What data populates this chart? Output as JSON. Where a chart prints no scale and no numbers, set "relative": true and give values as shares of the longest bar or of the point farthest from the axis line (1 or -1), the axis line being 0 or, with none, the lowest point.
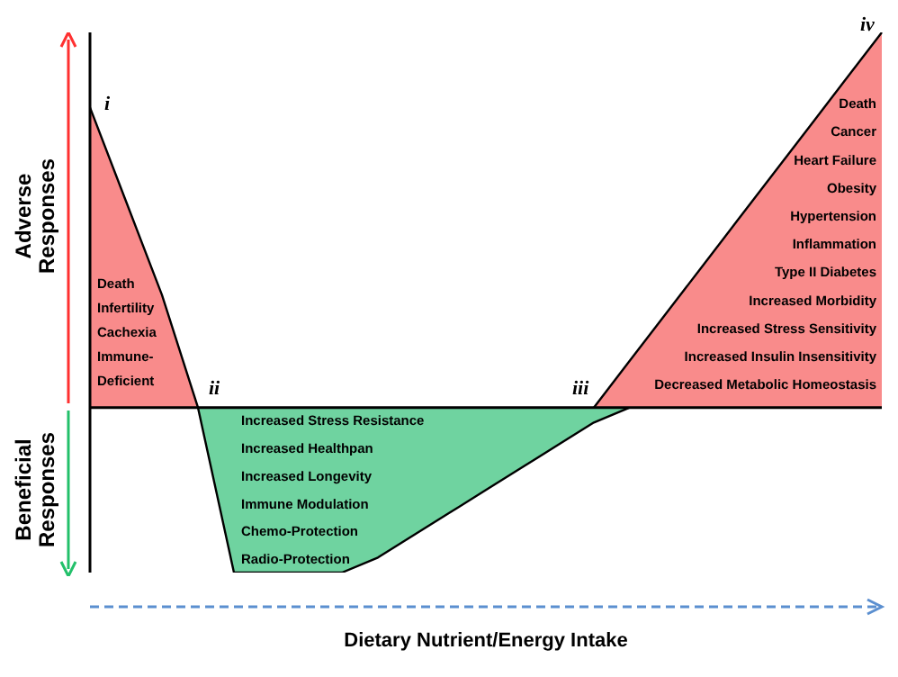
{
  "chart_data": {
    "type": "area",
    "relative": true,
    "xlabel": "Dietary Nutrient/Energy Intake",
    "categories": [
      null,
      null,
      null,
      null,
      null,
      null,
      null,
      null,
      null,
      null,
      null,
      null,
      null,
      null,
      null,
      null,
      null,
      null,
      null,
      null,
      null,
      null,
      null
    ],
    "series": [
      {
        "color": "#f98b8b",
        "values": [
          0.8,
          0.55,
          0.3,
          0,
          null,
          null,
          null,
          null,
          null,
          null,
          null,
          null,
          null,
          null,
          0,
          0.125,
          0.25,
          0.375,
          0.5,
          0.625,
          0.75,
          0.875,
          1
        ]
      },
      {
        "color": "#6fd3a0",
        "values": [
          null,
          null,
          null,
          0,
          -0.44,
          -0.44,
          -0.44,
          -0.44,
          -0.4,
          -0.34,
          -0.28,
          -0.22,
          -0.16,
          -0.1,
          -0.04,
          0,
          null,
          null,
          null,
          null,
          null,
          null,
          null
        ]
      }
    ],
    "annotations": [
      "Adverse Responses",
      "Beneficial Responses",
      "i",
      "ii",
      "iii",
      "iv",
      "Death\nInfertility\nCachexia\nImmune-\nDeficient",
      "Death\nCancer\nHeart Failure\nObesity\nHypertension\nInflammation\nType II Diabetes\nIncreased Morbidity\nIncreased Stress Sensitivity\nIncreased Insulin Insensitivity\nDecreased Metabolic Homeostasis",
      "Increased Stress Resistance\nIncreased Healthpan\nIncreased Longevity\nImmune Modulation\nChemo-Protection\nRadio-Protection"
    ]
  }
}
